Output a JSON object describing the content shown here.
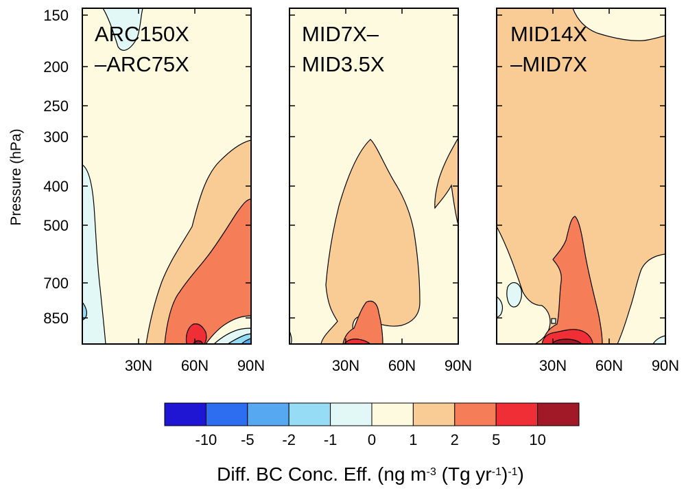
{
  "chart_data": {
    "type": "contour",
    "ylabel": "Pressure (hPa)",
    "y_scale": "log",
    "y_ticks": [
      "150",
      "200",
      "250",
      "300",
      "400",
      "500",
      "700",
      "850"
    ],
    "x_ticks": [
      "30N",
      "60N",
      "90N"
    ],
    "panels": [
      {
        "title_lines": [
          "ARC150X",
          "–ARC75X"
        ],
        "dominant_level": "0 to 1",
        "features": [
          {
            "level": "1 to 2",
            "lat_range": [
              "25N",
              "90N"
            ],
            "top_hPa": 300
          },
          {
            "level": "2 to 5",
            "lat_range": [
              "40N",
              "90N"
            ],
            "top_hPa": 450
          },
          {
            "level": "5 to 10",
            "lat_range": [
              "55N",
              "70N"
            ],
            "top_hPa": 880
          },
          {
            "level": "-1 to 0",
            "lat_range": [
              "0",
              "10N"
            ],
            "top_hPa": 360
          },
          {
            "level": "-1 to 0",
            "lat_range": [
              "10N",
              "20N"
            ],
            "top_hPa": 150
          }
        ]
      },
      {
        "title_lines": [
          "MID7X–",
          "MID3.5X"
        ],
        "dominant_level": "0 to 1",
        "features": [
          {
            "level": "1 to 2",
            "lat_range": [
              "15N",
              "70N"
            ],
            "top_hPa": 300
          },
          {
            "level": "1 to 2",
            "lat_range": [
              "80N",
              "90N"
            ],
            "top_hPa": 300
          },
          {
            "level": "2 to 5",
            "lat_range": [
              "25N",
              "55N"
            ],
            "top_hPa": 820
          },
          {
            "level": "5 to 10",
            "lat_range": [
              "25N",
              "40N"
            ],
            "top_hPa": 950
          }
        ]
      },
      {
        "title_lines": [
          "MID14X",
          "–MID7X"
        ],
        "dominant_level": "1 to 2",
        "features": [
          {
            "level": "0 to 1",
            "lat_range": [
              "5N",
              "25N"
            ],
            "top_hPa": 1000
          },
          {
            "level": "0 to 1",
            "lat_range": [
              "40N",
              "90N"
            ],
            "top_hPa": 150
          },
          {
            "level": "0 to 1",
            "lat_range": [
              "60N",
              "90N"
            ],
            "top_hPa": 600
          },
          {
            "level": "2 to 5",
            "lat_range": [
              "20N",
              "45N"
            ],
            "top_hPa": 480
          },
          {
            "level": "5 to 10",
            "lat_range": [
              "25N",
              "45N"
            ],
            "top_hPa": 920
          },
          {
            "level": "-1 to 0",
            "lat_range": [
              "0",
              "5N"
            ],
            "top_hPa": 720
          }
        ]
      }
    ],
    "colorbar": {
      "boundaries": [
        "-10",
        "-5",
        "-2",
        "-1",
        "0",
        "1",
        "2",
        "5",
        "10"
      ],
      "colors": [
        "#1F16D3",
        "#2D6DF0",
        "#56A9F0",
        "#96DCF4",
        "#E1F8F6",
        "#FEFAE0",
        "#F8CC94",
        "#F57D58",
        "#EF2E36",
        "#A11827"
      ],
      "title_parts": [
        "Diff. BC Conc. Eff. (ng m",
        "-3",
        " (Tg yr",
        "-1",
        ")",
        "-1",
        ")"
      ]
    }
  }
}
